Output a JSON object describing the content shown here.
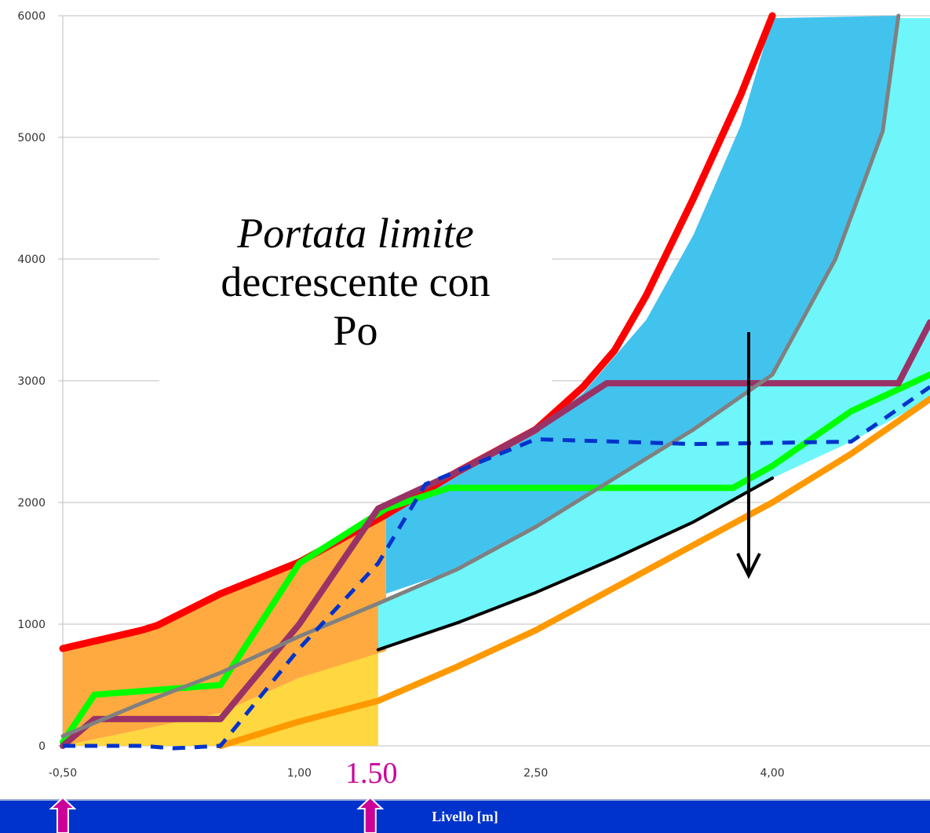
{
  "chart_data": {
    "type": "area",
    "xlabel": "Livello [m]",
    "ylabel": "",
    "xlim": [
      -0.5,
      5.0
    ],
    "ylim": [
      0,
      6000
    ],
    "x_ticks": [
      "-0,50",
      "1,00",
      "2,50",
      "4,00"
    ],
    "y_ticks": [
      "0",
      "1000",
      "2000",
      "3000",
      "4000",
      "5000",
      "6000"
    ],
    "grid": true,
    "annotation": {
      "line1": "Portata limite",
      "line2": "decrescente con",
      "line3": "Po"
    },
    "marker_label": "1.50",
    "markers_x": [
      -0.5,
      1.45
    ],
    "arrow": {
      "x": 3.85,
      "y_from": 3400,
      "y_to": 1400
    },
    "areas": [
      {
        "color": "#ffd740",
        "upper": [
          [
            -0.5,
            0
          ],
          [
            0.5,
            270
          ],
          [
            1.0,
            560
          ],
          [
            1.5,
            780
          ]
        ],
        "lower": [
          [
            -0.5,
            0
          ],
          [
            1.5,
            0
          ]
        ]
      },
      {
        "color": "#ffaa40",
        "upper": [
          [
            -0.5,
            780
          ],
          [
            0.1,
            980
          ],
          [
            0.5,
            1250
          ],
          [
            1.0,
            1510
          ],
          [
            1.55,
            1900
          ]
        ],
        "lower": [
          [
            -0.5,
            0
          ],
          [
            0.5,
            270
          ],
          [
            1.0,
            560
          ],
          [
            1.55,
            780
          ]
        ]
      },
      {
        "color": "#6ef6fa",
        "upper": [
          [
            1.5,
            1170
          ],
          [
            2.0,
            1450
          ],
          [
            2.5,
            1800
          ],
          [
            3.0,
            2200
          ],
          [
            3.5,
            2600
          ],
          [
            4.0,
            3050
          ],
          [
            4.5,
            4300
          ],
          [
            4.8,
            5980
          ],
          [
            5.0,
            5980
          ]
        ],
        "lower": [
          [
            1.5,
            780
          ],
          [
            2.0,
            1000
          ],
          [
            2.5,
            1250
          ],
          [
            3.0,
            1530
          ],
          [
            3.5,
            1830
          ],
          [
            4.0,
            2200
          ],
          [
            4.5,
            2500
          ],
          [
            5.0,
            2850
          ]
        ]
      },
      {
        "color": "#42c3ee",
        "upper": [
          [
            1.55,
            1900
          ],
          [
            2.0,
            2250
          ],
          [
            2.5,
            2600
          ],
          [
            2.8,
            2900
          ],
          [
            3.2,
            3500
          ],
          [
            3.5,
            4200
          ],
          [
            3.8,
            5100
          ],
          [
            4.0,
            5980
          ],
          [
            4.8,
            6000
          ]
        ],
        "lower": [
          [
            1.55,
            1250
          ],
          [
            2.0,
            1450
          ],
          [
            2.5,
            1800
          ],
          [
            3.0,
            2200
          ],
          [
            3.5,
            2600
          ],
          [
            4.0,
            3050
          ],
          [
            4.4,
            4000
          ],
          [
            4.7,
            5050
          ],
          [
            4.8,
            6000
          ]
        ]
      }
    ],
    "series": [
      {
        "color": "#ff0000",
        "width": 9,
        "dash": "",
        "x": [
          -0.5,
          0.0,
          0.1,
          0.5,
          1.0,
          1.55,
          2.0,
          2.5,
          2.8,
          3.0,
          3.2,
          3.5,
          3.8,
          4.0
        ],
        "y": [
          800,
          950,
          990,
          1250,
          1510,
          1900,
          2250,
          2600,
          2950,
          3250,
          3700,
          4500,
          5350,
          6000
        ]
      },
      {
        "color": "#00ff00",
        "width": 8,
        "dash": "",
        "x": [
          -0.5,
          -0.3,
          0.5,
          1.0,
          1.55,
          1.95,
          3.75,
          4.0,
          4.5,
          5.0
        ],
        "y": [
          30,
          420,
          500,
          1500,
          1950,
          2120,
          2120,
          2300,
          2750,
          3050
        ]
      },
      {
        "color": "#993366",
        "width": 8,
        "dash": "",
        "x": [
          -0.5,
          -0.3,
          0.5,
          1.0,
          1.5,
          2.0,
          2.5,
          2.95,
          4.8,
          5.0
        ],
        "y": [
          0,
          220,
          220,
          1000,
          1950,
          2250,
          2600,
          2980,
          2980,
          3480
        ]
      },
      {
        "color": "#ff9900",
        "width": 8,
        "dash": "",
        "x": [
          0.5,
          1.0,
          1.5,
          2.0,
          2.5,
          3.0,
          3.5,
          4.0,
          4.5,
          5.0
        ],
        "y": [
          0,
          200,
          370,
          650,
          950,
          1300,
          1650,
          2000,
          2400,
          2850
        ]
      },
      {
        "color": "#808080",
        "width": 5,
        "dash": "",
        "x": [
          -0.5,
          0.0,
          0.5,
          1.0,
          1.5,
          2.0,
          2.5,
          3.0,
          3.5,
          4.0,
          4.4,
          4.7,
          4.8
        ],
        "y": [
          80,
          350,
          600,
          900,
          1170,
          1450,
          1800,
          2200,
          2600,
          3050,
          4000,
          5050,
          6000
        ]
      },
      {
        "color": "#000000",
        "width": 4,
        "dash": "",
        "x": [
          1.5,
          2.0,
          2.5,
          3.0,
          3.5,
          4.0
        ],
        "y": [
          790,
          1010,
          1260,
          1540,
          1840,
          2200
        ]
      },
      {
        "color": "#0033cc",
        "width": 5,
        "dash": "16 12",
        "x": [
          -0.5,
          0.0,
          0.2,
          0.5,
          1.0,
          1.5,
          1.8,
          2.5,
          3.5,
          4.5,
          5.0
        ],
        "y": [
          0,
          0,
          -20,
          0,
          800,
          1500,
          2150,
          2520,
          2480,
          2500,
          2950
        ]
      }
    ]
  },
  "axis_title": "Livello [m]"
}
